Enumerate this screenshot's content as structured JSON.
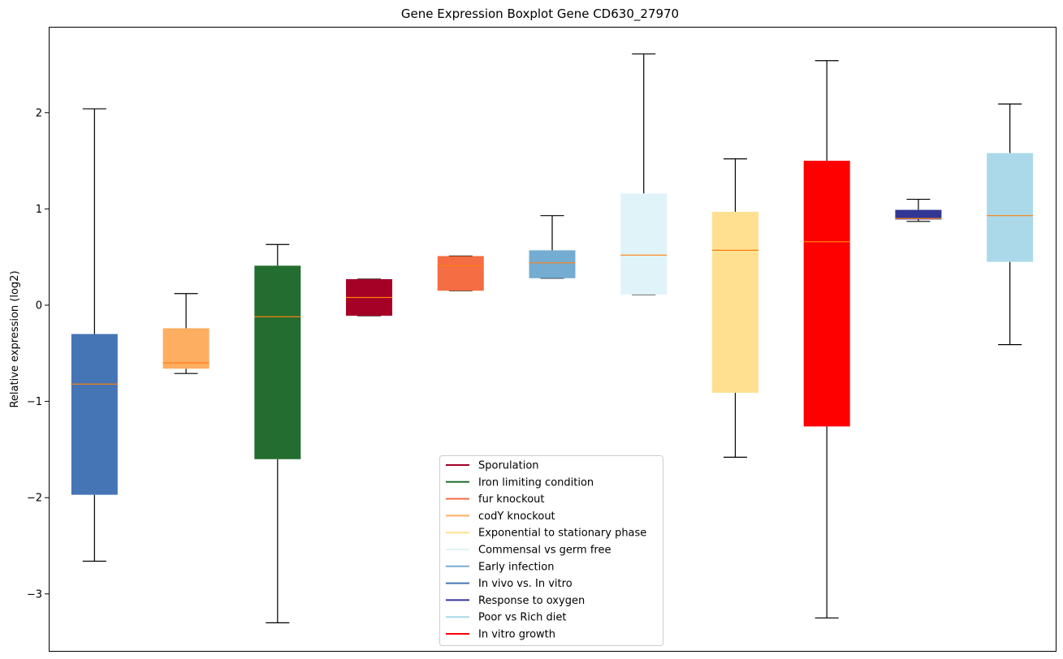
{
  "chart_data": {
    "type": "boxplot",
    "title": "Gene Expression Boxplot Gene CD630_27970",
    "xlabel": "",
    "ylabel": "Relative expression (log2)",
    "ylim": [
      -3.55,
      2.9
    ],
    "yticks": [
      -3,
      -2,
      -1,
      0,
      1,
      2
    ],
    "ytick_labels": [
      "−3",
      "−2",
      "−1",
      "0",
      "1",
      "2"
    ],
    "xticks_visible": false,
    "grid": false,
    "legend_placement": "lower-center",
    "median_color": "#ff7f0e",
    "boxes": [
      {
        "name": "In vivo vs. In vitro",
        "color": "#4575b4",
        "whisker_low": -2.66,
        "q1": -1.97,
        "median": -0.82,
        "q3": -0.3,
        "whisker_high": 2.04
      },
      {
        "name": "codY knockout",
        "color": "#fdae61",
        "whisker_low": -0.71,
        "q1": -0.66,
        "median": -0.6,
        "q3": -0.24,
        "whisker_high": 0.12
      },
      {
        "name": "Iron limiting condition",
        "color": "#226d2f",
        "whisker_low": -3.3,
        "q1": -1.6,
        "median": -0.12,
        "q3": 0.41,
        "whisker_high": 0.63
      },
      {
        "name": "Sporulation",
        "color": "#a50026",
        "whisker_low": -0.11,
        "q1": -0.11,
        "median": 0.08,
        "q3": 0.27,
        "whisker_high": 0.27
      },
      {
        "name": "fur knockout",
        "color": "#f46d43",
        "whisker_low": 0.15,
        "q1": 0.15,
        "median": 0.41,
        "q3": 0.51,
        "whisker_high": 0.51
      },
      {
        "name": "Early infection",
        "color": "#74add1",
        "whisker_low": 0.28,
        "q1": 0.28,
        "median": 0.44,
        "q3": 0.57,
        "whisker_high": 0.93
      },
      {
        "name": "Commensal vs germ free",
        "color": "#e0f3f8",
        "whisker_low": 0.11,
        "q1": 0.11,
        "median": 0.52,
        "q3": 1.16,
        "whisker_high": 2.61
      },
      {
        "name": "Exponential to stationary phase",
        "color": "#fee090",
        "whisker_low": -1.58,
        "q1": -0.91,
        "median": 0.57,
        "q3": 0.97,
        "whisker_high": 1.52
      },
      {
        "name": "In vitro growth",
        "color": "#ff0000",
        "whisker_low": -3.25,
        "q1": -1.26,
        "median": 0.66,
        "q3": 1.5,
        "whisker_high": 2.54
      },
      {
        "name": "Response to oxygen",
        "color": "#313695",
        "whisker_low": 0.87,
        "q1": 0.89,
        "median": 0.9,
        "q3": 0.99,
        "whisker_high": 1.1
      },
      {
        "name": "Poor vs Rich diet",
        "color": "#abd9e9",
        "whisker_low": -0.41,
        "q1": 0.45,
        "median": 0.93,
        "q3": 1.58,
        "whisker_high": 2.09
      }
    ],
    "legend": [
      {
        "label": "Sporulation",
        "color": "#a50026"
      },
      {
        "label": "Iron limiting condition",
        "color": "#226d2f"
      },
      {
        "label": "fur knockout",
        "color": "#f46d43"
      },
      {
        "label": "codY knockout",
        "color": "#fdae61"
      },
      {
        "label": "Exponential to stationary phase",
        "color": "#fee090"
      },
      {
        "label": "Commensal vs germ free",
        "color": "#e0f3f8"
      },
      {
        "label": "Early infection",
        "color": "#74add1"
      },
      {
        "label": "In vivo vs. In vitro",
        "color": "#4575b4"
      },
      {
        "label": "Response to oxygen",
        "color": "#313695"
      },
      {
        "label": "Poor vs Rich diet",
        "color": "#abd9e9"
      },
      {
        "label": "In vitro growth",
        "color": "#ff0000"
      }
    ]
  }
}
